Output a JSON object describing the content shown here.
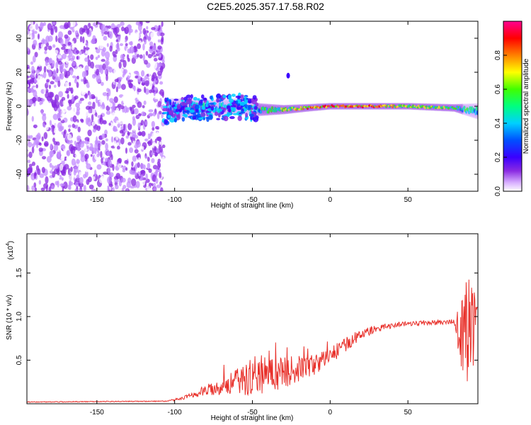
{
  "title": "C2E5.2025.357.17.58.R02",
  "colors": {
    "line": "#e8302a",
    "axis": "#000000",
    "background": "#ffffff",
    "colormap": [
      "#ffffff",
      "#c38cff",
      "#8a2be2",
      "#3a00ff",
      "#0050ff",
      "#00d0ff",
      "#00ff80",
      "#40ff00",
      "#ffff00",
      "#ff8000",
      "#ff0000",
      "#ff0090"
    ]
  },
  "chart_data": [
    {
      "type": "heatmap",
      "xlabel": "Height of straight line (km)",
      "ylabel": "Frequency (Hz)",
      "xlim": [
        -195,
        95
      ],
      "ylim": [
        -50,
        50
      ],
      "x_ticks": [
        -150,
        -100,
        -50,
        0,
        50
      ],
      "x_tick_labels": [
        "-150",
        "-100",
        "-50",
        "0",
        "50"
      ],
      "y_ticks": [
        -40,
        -20,
        0,
        20,
        40
      ],
      "y_tick_labels": [
        "-40",
        "-20",
        "0",
        "20",
        "40"
      ],
      "colorbar": {
        "label": "Normalized spectral amplitude",
        "range": [
          0,
          1
        ],
        "ticks": [
          0,
          0.2,
          0.4,
          0.6,
          0.8
        ],
        "tick_labels": [
          "0.0",
          "0.2",
          "0.4",
          "0.6",
          "0.8"
        ]
      },
      "ridge": [
        {
          "x": -105,
          "amp": 0.35,
          "freq": -2,
          "spread": 6
        },
        {
          "x": -90,
          "amp": 0.45,
          "freq": -1,
          "spread": 5
        },
        {
          "x": -75,
          "amp": 0.5,
          "freq": -1,
          "spread": 4
        },
        {
          "x": -60,
          "amp": 0.5,
          "freq": 0,
          "spread": 4
        },
        {
          "x": -45,
          "amp": 0.55,
          "freq": -2,
          "spread": 3
        },
        {
          "x": -30,
          "amp": 0.65,
          "freq": -2,
          "spread": 2
        },
        {
          "x": -15,
          "amp": 0.8,
          "freq": -1,
          "spread": 1.5
        },
        {
          "x": 0,
          "amp": 0.9,
          "freq": 0,
          "spread": 1.2
        },
        {
          "x": 20,
          "amp": 0.85,
          "freq": 0,
          "spread": 1.2
        },
        {
          "x": 50,
          "amp": 0.7,
          "freq": 0,
          "spread": 1.2
        },
        {
          "x": 80,
          "amp": 0.6,
          "freq": -1,
          "spread": 1.5
        },
        {
          "x": 95,
          "amp": 0.45,
          "freq": -3,
          "spread": 4
        }
      ],
      "noise_region": [
        -195,
        -107
      ],
      "secondary_spot": {
        "x": -27,
        "freq": 18,
        "amp": 0.3
      }
    },
    {
      "type": "line",
      "xlabel": "Height of straight line (km)",
      "ylabel": "SNR (10 * v/v)",
      "y_scale_label": "(x10",
      "y_scale_exp": "4",
      "y_scale_close": ")",
      "xlim": [
        -195,
        95
      ],
      "ylim": [
        0,
        1.95
      ],
      "x_ticks": [
        -150,
        -100,
        -50,
        0,
        50
      ],
      "x_tick_labels": [
        "-150",
        "-100",
        "-50",
        "0",
        "50"
      ],
      "y_ticks": [
        0.5,
        1.0,
        1.5
      ],
      "y_tick_labels": [
        "0.5",
        "1.0",
        "1.5"
      ],
      "series": [
        {
          "trend_x": [
            -195,
            -105,
            -95,
            -85,
            -75,
            -60,
            -50,
            -40,
            -30,
            -20,
            -10,
            0,
            10,
            20,
            30,
            40,
            50,
            60,
            70,
            80,
            85,
            88,
            92,
            95
          ],
          "trend_y": [
            0.02,
            0.03,
            0.06,
            0.12,
            0.18,
            0.25,
            0.3,
            0.33,
            0.36,
            0.4,
            0.45,
            0.55,
            0.68,
            0.8,
            0.86,
            0.9,
            0.92,
            0.93,
            0.93,
            0.94,
            0.75,
            0.9,
            0.85,
            1.1
          ],
          "noise_y": [
            0.005,
            0.005,
            0.02,
            0.05,
            0.08,
            0.15,
            0.2,
            0.2,
            0.18,
            0.15,
            0.12,
            0.1,
            0.08,
            0.06,
            0.04,
            0.03,
            0.03,
            0.03,
            0.03,
            0.03,
            0.5,
            0.7,
            0.6,
            0.3
          ]
        }
      ]
    }
  ]
}
